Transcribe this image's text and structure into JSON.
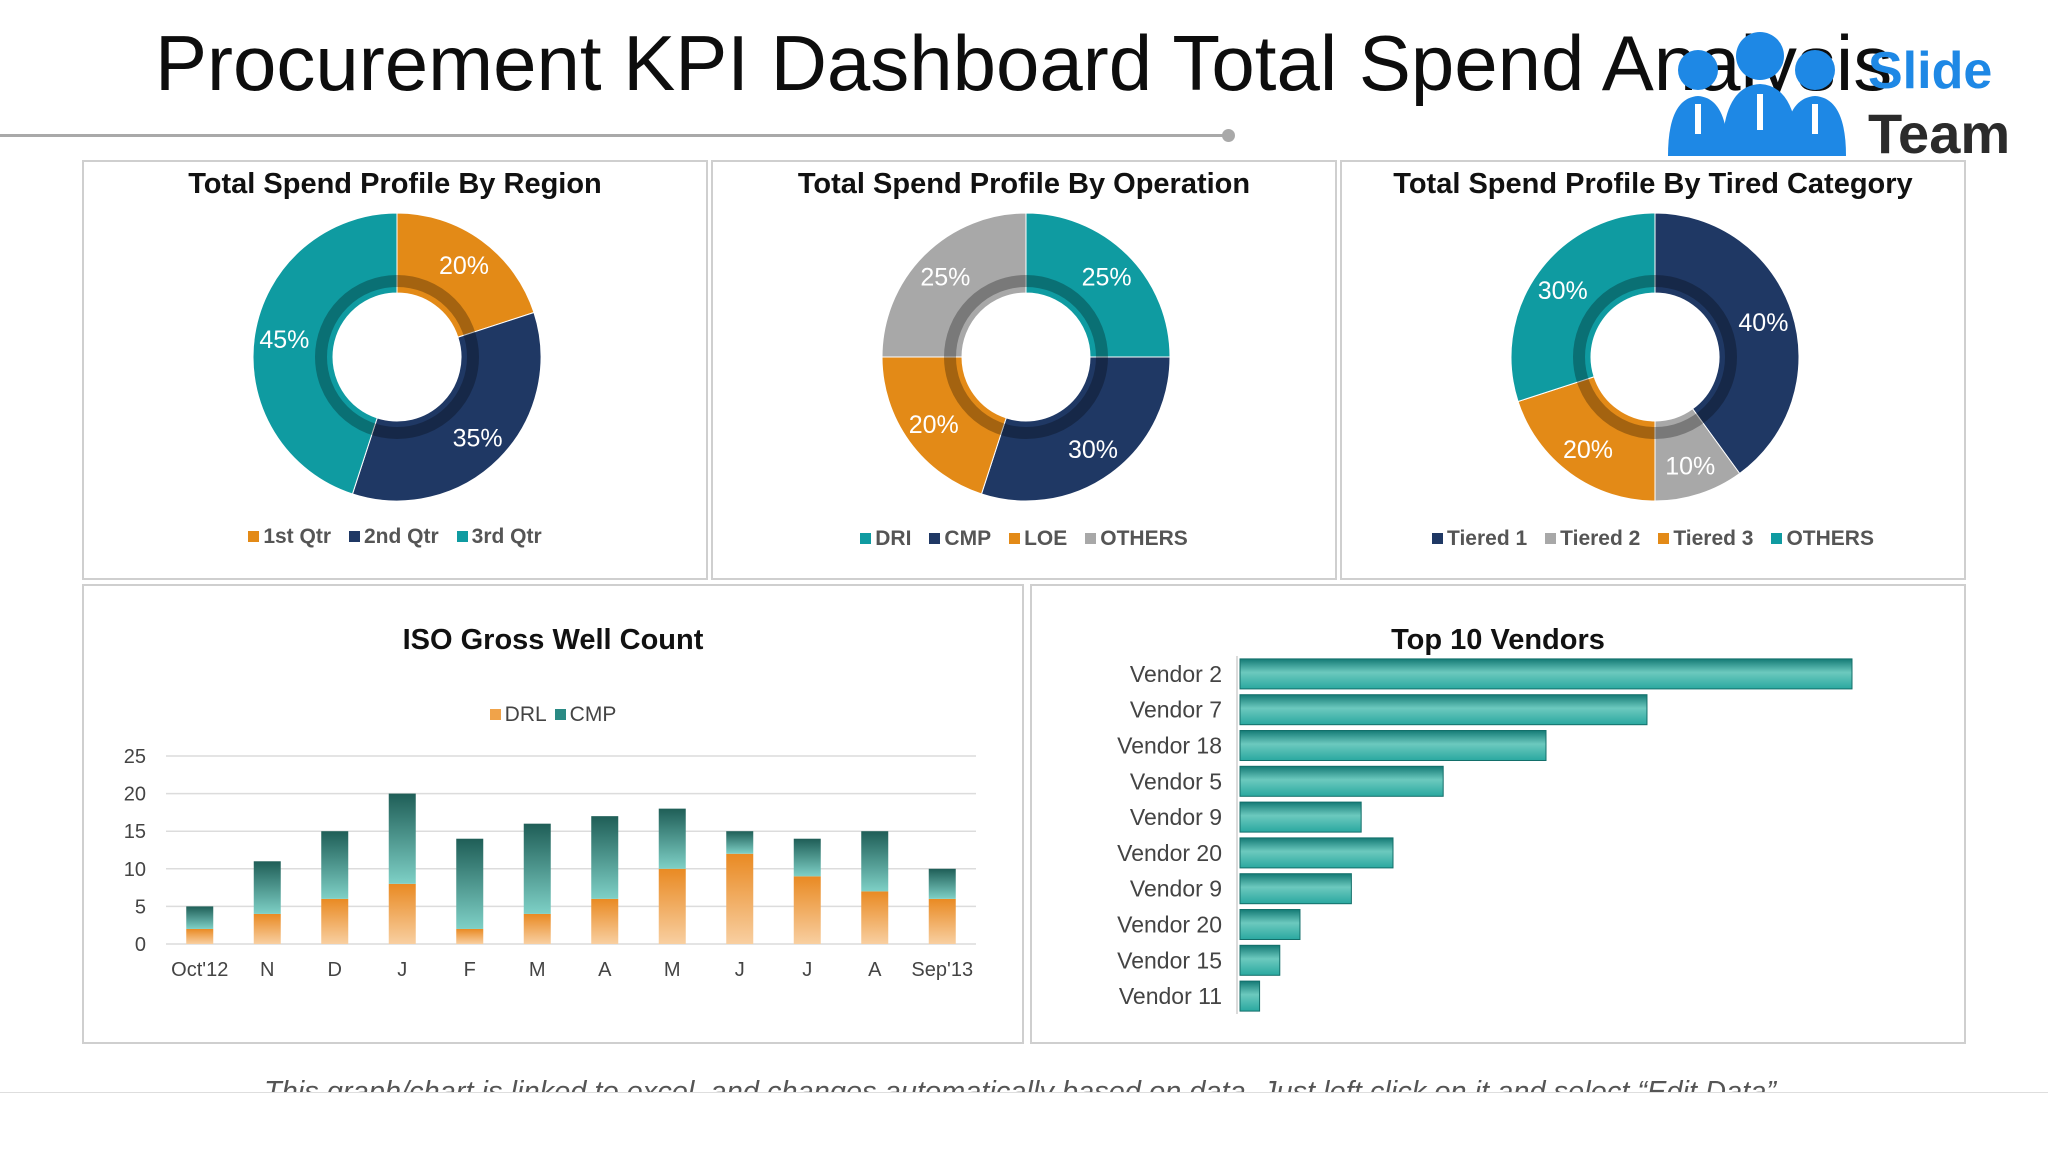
{
  "page": {
    "title": "Procurement KPI Dashboard Total Spend Analysis",
    "logo": {
      "line1": "Slide",
      "line2": "Team",
      "icon": "people-group-icon"
    },
    "footer": "This graph/chart is linked to excel, and changes automatically based on data. Just left click on it and select “Edit Data”."
  },
  "chart_data": [
    {
      "type": "pie",
      "title": "Total Spend Profile By Region",
      "labels": [
        "1st Qtr",
        "2nd Qtr",
        "3rd Qtr"
      ],
      "values": [
        20,
        35,
        45
      ],
      "value_labels": [
        "20%",
        "35%",
        "45%"
      ],
      "colors": [
        "#e38a17",
        "#1f3864",
        "#0f9ba1"
      ],
      "legend_position": "bottom"
    },
    {
      "type": "pie",
      "title": "Total Spend Profile By Operation",
      "labels": [
        "DRI",
        "CMP",
        "LOE",
        "OTHERS"
      ],
      "values": [
        25,
        30,
        20,
        25
      ],
      "value_labels": [
        "25%",
        "30%",
        "20%",
        "25%"
      ],
      "colors": [
        "#0f9ba1",
        "#1f3864",
        "#e38a17",
        "#a8a8a8"
      ],
      "legend_position": "bottom"
    },
    {
      "type": "pie",
      "title": "Total Spend Profile By Tired Category",
      "labels": [
        "Tiered 1",
        "Tiered 2",
        "Tiered 3",
        "OTHERS"
      ],
      "values": [
        40,
        10,
        20,
        30
      ],
      "value_labels": [
        "40%",
        "10%",
        "20%",
        "30%"
      ],
      "colors": [
        "#1f3864",
        "#a8a8a8",
        "#e38a17",
        "#0f9ba1"
      ],
      "legend_position": "bottom"
    },
    {
      "type": "bar",
      "stacked": true,
      "title": "ISO Gross Well Count",
      "categories": [
        "Oct'12",
        "N",
        "D",
        "J",
        "F",
        "M",
        "A",
        "M",
        "J",
        "J",
        "A",
        "Sep'13"
      ],
      "series": [
        {
          "name": "DRL",
          "values": [
            2,
            4,
            6,
            8,
            2,
            4,
            6,
            10,
            12,
            9,
            7,
            6
          ],
          "color": "#f0a34a"
        },
        {
          "name": "CMP",
          "values": [
            3,
            7,
            9,
            12,
            12,
            12,
            11,
            8,
            3,
            5,
            8,
            4
          ],
          "color": "#2a8a84"
        }
      ],
      "ylim": [
        0,
        25
      ],
      "yticks": [
        "0",
        "5",
        "10",
        "15",
        "20",
        "25"
      ],
      "grid": true,
      "legend_position": "top"
    },
    {
      "type": "bar",
      "orientation": "horizontal",
      "title": "Top 10 Vendors",
      "categories": [
        "Vendor 2",
        "Vendor 7",
        "Vendor 18",
        "Vendor 5",
        "Vendor 9",
        "Vendor 20",
        "Vendor 9",
        "Vendor 20",
        "Vendor 15",
        "Vendor 11"
      ],
      "values": [
        100,
        66.5,
        50,
        33.2,
        19.8,
        25,
        18.2,
        9.8,
        6.5,
        3.2
      ],
      "color": "#2aa8a0",
      "grid": false
    }
  ]
}
